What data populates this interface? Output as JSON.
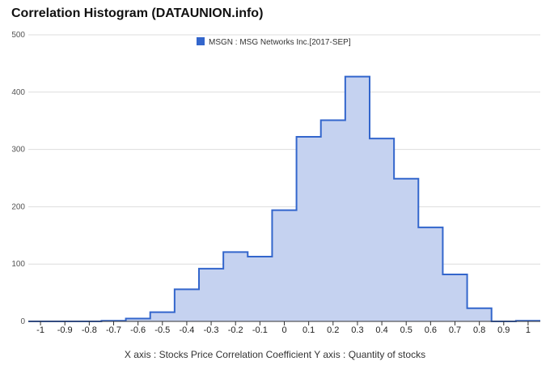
{
  "chart_data": {
    "type": "area",
    "title": "Correlation Histogram (DATAUNION.info)",
    "legend": {
      "label": "MSGN : MSG Networks Inc.[2017-SEP]",
      "position": "top-center"
    },
    "caption": "X axis : Stocks Price Correlation Coefficient  Y axis : Quantity of stocks",
    "xlim": [
      -1.05,
      1.05
    ],
    "ylim": [
      0,
      500
    ],
    "yticks": [
      0,
      100,
      200,
      300,
      400,
      500
    ],
    "xticks": [
      "-1",
      "-0.9",
      "-0.8",
      "-0.7",
      "-0.6",
      "-0.5",
      "-0.4",
      "-0.3",
      "-0.2",
      "-0.1",
      "0",
      "0.1",
      "0.2",
      "0.3",
      "0.4",
      "0.5",
      "0.6",
      "0.7",
      "0.8",
      "0.9",
      "1"
    ],
    "grid": true,
    "bin_edges": [
      -1.05,
      -0.95,
      -0.85,
      -0.75,
      -0.65,
      -0.55,
      -0.45,
      -0.35,
      -0.25,
      -0.15,
      -0.05,
      0.05,
      0.15,
      0.25,
      0.35,
      0.45,
      0.55,
      0.65,
      0.75,
      0.85,
      0.95,
      1.05
    ],
    "values": [
      0,
      0,
      0,
      1,
      5,
      16,
      56,
      92,
      121,
      113,
      194,
      322,
      351,
      427,
      319,
      249,
      164,
      82,
      23,
      0,
      1
    ],
    "colors": {
      "line": "#3366cc",
      "fill": "#c5d2f0",
      "grid": "#dddddd",
      "axis": "#333333"
    }
  }
}
